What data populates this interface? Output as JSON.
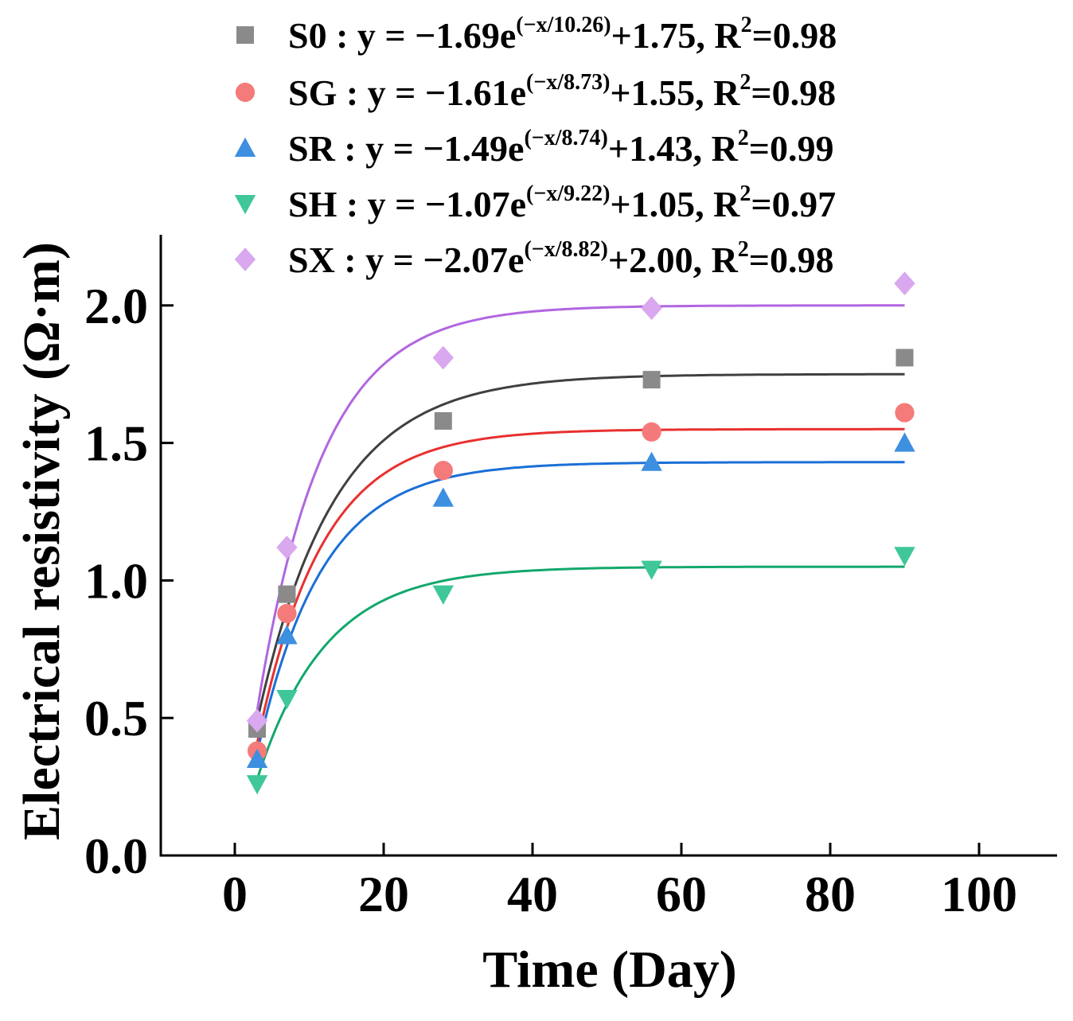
{
  "chart_data": {
    "type": "scatter",
    "xlabel": "Time (Day)",
    "ylabel": "Electrical resistivity (Ω·m)",
    "xlim": [
      -10,
      110
    ],
    "ylim": [
      0,
      2.25
    ],
    "xticks": [
      0,
      20,
      40,
      60,
      80,
      100
    ],
    "yticks": [
      0.0,
      0.5,
      1.0,
      1.5,
      2.0
    ],
    "xtick_labels": [
      "0",
      "20",
      "40",
      "60",
      "80",
      "100"
    ],
    "ytick_labels": [
      "0.0",
      "0.5",
      "1.0",
      "1.5",
      "2.0"
    ],
    "legend_position": "top",
    "series": [
      {
        "name": "S0",
        "marker": "square",
        "color": "#8a8a8a",
        "line_color": "#404040",
        "x": [
          3,
          7,
          28,
          56,
          90
        ],
        "y": [
          0.46,
          0.95,
          1.58,
          1.73,
          1.81
        ],
        "fit": {
          "a": 1.69,
          "t": 10.26,
          "c": 1.75
        },
        "eq_prefix": "S0 :  y = −1.69e",
        "eq_exp": "(−x/10.26)",
        "eq_suffix": "+1.75, R",
        "r2_sup": "2",
        "r2_value": "=0.98"
      },
      {
        "name": "SG",
        "marker": "circle",
        "color": "#f57a7a",
        "line_color": "#e8302f",
        "x": [
          3,
          7,
          28,
          56,
          90
        ],
        "y": [
          0.38,
          0.88,
          1.4,
          1.54,
          1.61
        ],
        "fit": {
          "a": 1.61,
          "t": 8.73,
          "c": 1.55
        },
        "eq_prefix": "SG : y = −1.61e",
        "eq_exp": "(−x/8.73)",
        "eq_suffix": "+1.55, R",
        "r2_sup": "2",
        "r2_value": "=0.98"
      },
      {
        "name": "SR",
        "marker": "triangle-up",
        "color": "#3d8fe0",
        "line_color": "#1a6fd6",
        "x": [
          3,
          7,
          28,
          56,
          90
        ],
        "y": [
          0.35,
          0.8,
          1.3,
          1.43,
          1.5
        ],
        "fit": {
          "a": 1.49,
          "t": 8.74,
          "c": 1.43
        },
        "eq_prefix": "SR : y = −1.49e",
        "eq_exp": "(−x/8.74)",
        "eq_suffix": "+1.43, R",
        "r2_sup": "2",
        "r2_value": "=0.99"
      },
      {
        "name": "SH",
        "marker": "triangle-down",
        "color": "#3fc79a",
        "line_color": "#12a86c",
        "x": [
          3,
          7,
          28,
          56,
          90
        ],
        "y": [
          0.26,
          0.57,
          0.95,
          1.04,
          1.09
        ],
        "fit": {
          "a": 1.07,
          "t": 9.22,
          "c": 1.05
        },
        "eq_prefix": "SH : y = −1.07e",
        "eq_exp": "(−x/9.22)",
        "eq_suffix": "+1.05, R",
        "r2_sup": "2",
        "r2_value": "=0.97"
      },
      {
        "name": "SX",
        "marker": "diamond",
        "color": "#d9a8ef",
        "line_color": "#b066e0",
        "x": [
          3,
          7,
          28,
          56,
          90
        ],
        "y": [
          0.49,
          1.12,
          1.81,
          1.99,
          2.08
        ],
        "fit": {
          "a": 2.07,
          "t": 8.82,
          "c": 2.0
        },
        "eq_prefix": "SX : y = −2.07e",
        "eq_exp": "(−x/8.82)",
        "eq_suffix": "+2.00, R",
        "r2_sup": "2",
        "r2_value": "=0.98"
      }
    ]
  }
}
